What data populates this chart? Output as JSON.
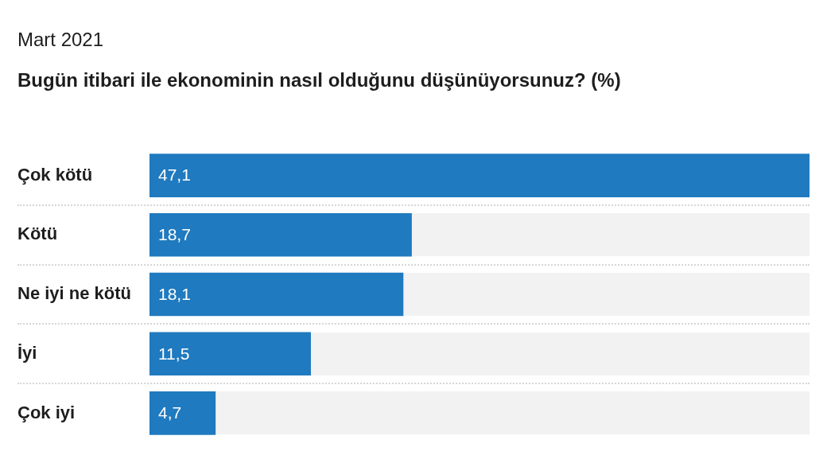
{
  "chart_data": {
    "type": "bar",
    "orientation": "horizontal",
    "subtitle": "Mart 2021",
    "title": "Bugün itibari ile ekonominin nasıl olduğunu düşünüyorsunuz? (%)",
    "categories": [
      "Çok kötü",
      "Kötü",
      "Ne iyi ne kötü",
      "İyi",
      "Çok iyi"
    ],
    "values": [
      47.1,
      18.7,
      18.1,
      11.5,
      4.7
    ],
    "value_labels": [
      "47,1",
      "18,7",
      "18,1",
      "11,5",
      "4,7"
    ],
    "color": "#1f7abf"
  }
}
